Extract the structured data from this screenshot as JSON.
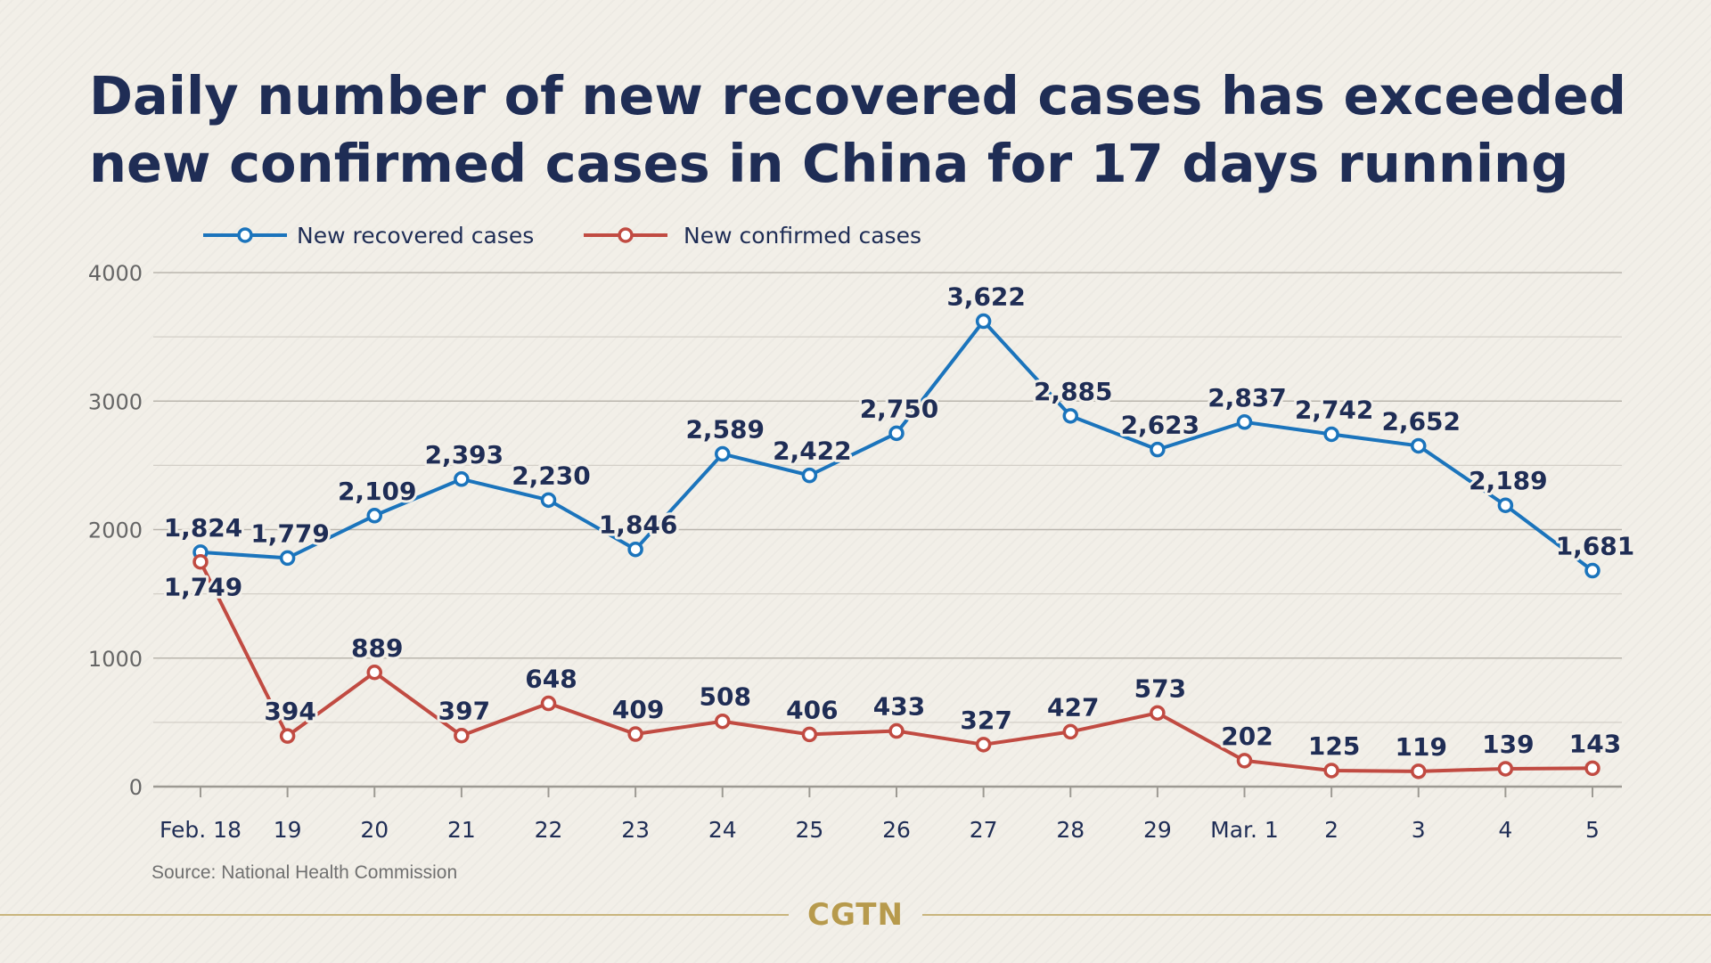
{
  "title_lines": [
    "Daily number of new recovered cases has exceeded",
    "new confirmed cases in China for 17 days running"
  ],
  "source": "Source: National Health Commission",
  "brand": "CGTN",
  "colors": {
    "recovered": "#1b74bc",
    "confirmed": "#c14b42",
    "title": "#1f2d55",
    "labels": "#1f2d55",
    "axis_text": "#666666",
    "grid": "#b9b5ad",
    "brand": "#b79a4c"
  },
  "chart_data": {
    "type": "line",
    "title": "Daily number of new recovered cases has exceeded new confirmed cases in China for 17 days running",
    "categories": [
      "Feb. 18",
      "19",
      "20",
      "21",
      "22",
      "23",
      "24",
      "25",
      "26",
      "27",
      "28",
      "29",
      "Mar. 1",
      "2",
      "3",
      "4",
      "5"
    ],
    "series": [
      {
        "name": "New recovered cases",
        "values": [
          1824,
          1779,
          2109,
          2393,
          2230,
          1846,
          2589,
          2422,
          2750,
          3622,
          2885,
          2623,
          2837,
          2742,
          2652,
          2189,
          1681
        ],
        "labels": [
          "1,824",
          "1,779",
          "2,109",
          "2,393",
          "2,230",
          "1,846",
          "2,589",
          "2,422",
          "2,750",
          "3,622",
          "2,885",
          "2,623",
          "2,837",
          "2,742",
          "2,652",
          "2,189",
          "1,681"
        ]
      },
      {
        "name": "New confirmed cases",
        "values": [
          1749,
          394,
          889,
          397,
          648,
          409,
          508,
          406,
          433,
          327,
          427,
          573,
          202,
          125,
          119,
          139,
          143
        ],
        "labels": [
          "1,749",
          "394",
          "889",
          "397",
          "648",
          "409",
          "508",
          "406",
          "433",
          "327",
          "427",
          "573",
          "202",
          "125",
          "119",
          "139",
          "143"
        ]
      }
    ],
    "ylim": [
      0,
      4000
    ],
    "yticks": [
      0,
      1000,
      2000,
      3000,
      4000
    ],
    "grid": true,
    "legend_position": "top-left"
  }
}
